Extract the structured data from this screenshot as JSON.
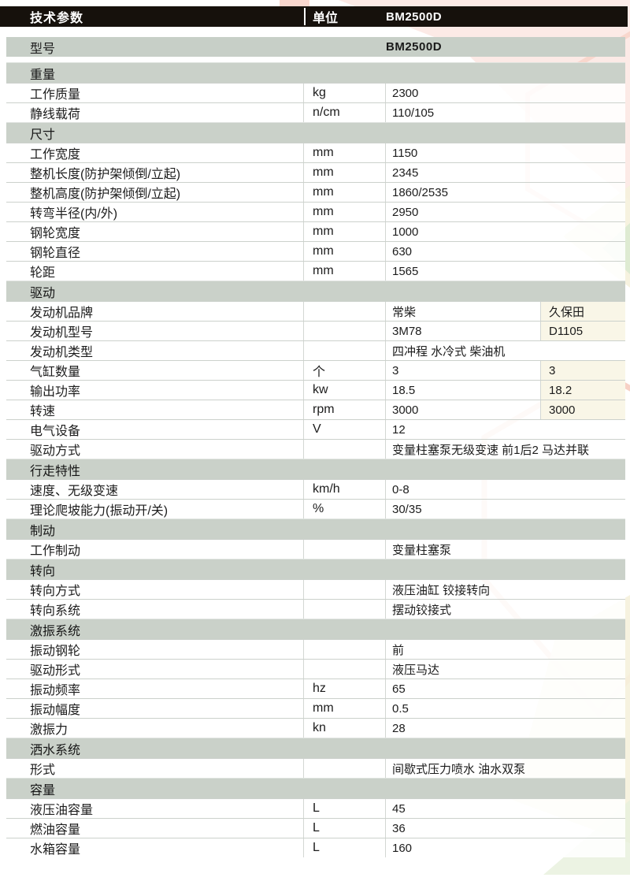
{
  "header": {
    "title": "技术参数",
    "unit_label": "单位",
    "model": "BM2500D"
  },
  "model_row": {
    "label": "型号",
    "value": "BM2500D"
  },
  "sections": [
    {
      "title": "重量",
      "rows": [
        {
          "label": "工作质量",
          "unit": "kg",
          "value": "2300"
        },
        {
          "label": "静线载荷",
          "unit": "n/cm",
          "value": "110/105"
        }
      ]
    },
    {
      "title": "尺寸",
      "rows": [
        {
          "label": "工作宽度",
          "unit": "mm",
          "value": "1150"
        },
        {
          "label": "整机长度(防护架倾倒/立起)",
          "unit": "mm",
          "value": "2345"
        },
        {
          "label": "整机高度(防护架倾倒/立起)",
          "unit": "mm",
          "value": "1860/2535"
        },
        {
          "label": "转弯半径(内/外)",
          "unit": "mm",
          "value": "2950"
        },
        {
          "label": "钢轮宽度",
          "unit": "mm",
          "value": "1000"
        },
        {
          "label": "钢轮直径",
          "unit": "mm",
          "value": "630"
        },
        {
          "label": "轮距",
          "unit": "mm",
          "value": "1565"
        }
      ]
    },
    {
      "title": "驱动",
      "rows": [
        {
          "label": "发动机品牌",
          "unit": "",
          "value": "常柴",
          "value2": "久保田"
        },
        {
          "label": "发动机型号",
          "unit": "",
          "value": "3M78",
          "value2": "D1105"
        },
        {
          "label": "发动机类型",
          "unit": "",
          "value": "四冲程  水冷式  柴油机"
        },
        {
          "label": "气缸数量",
          "unit": "个",
          "value": "3",
          "value2": "3"
        },
        {
          "label": "输出功率",
          "unit": "kw",
          "value": "18.5",
          "value2": "18.2"
        },
        {
          "label": "转速",
          "unit": "rpm",
          "value": "3000",
          "value2": "3000"
        },
        {
          "label": "电气设备",
          "unit": "V",
          "value": "12"
        },
        {
          "label": "驱动方式",
          "unit": "",
          "value": "变量柱塞泵无级变速  前1后2  马达并联"
        }
      ]
    },
    {
      "title": "行走特性",
      "rows": [
        {
          "label": "速度、无级变速",
          "unit": "km/h",
          "value": "0-8"
        },
        {
          "label": "理论爬坡能力(振动开/关)",
          "unit": "%",
          "value": "30/35"
        }
      ]
    },
    {
      "title": "制动",
      "rows": [
        {
          "label": "工作制动",
          "unit": "",
          "value": "变量柱塞泵"
        }
      ]
    },
    {
      "title": "转向",
      "rows": [
        {
          "label": "转向方式",
          "unit": "",
          "value": "液压油缸 铰接转向"
        },
        {
          "label": "转向系统",
          "unit": "",
          "value": "摆动铰接式"
        }
      ]
    },
    {
      "title": "激振系统",
      "rows": [
        {
          "label": "振动钢轮",
          "unit": "",
          "value": "前"
        },
        {
          "label": "驱动形式",
          "unit": "",
          "value": "液压马达"
        },
        {
          "label": "振动频率",
          "unit": "hz",
          "value": "65"
        },
        {
          "label": "振动幅度",
          "unit": "mm",
          "value": "0.5"
        },
        {
          "label": "激振力",
          "unit": "kn",
          "value": "28"
        }
      ]
    },
    {
      "title": "洒水系统",
      "rows": [
        {
          "label": "形式",
          "unit": "",
          "value": "间歇式压力喷水  油水双泵"
        }
      ]
    },
    {
      "title": "容量",
      "rows": [
        {
          "label": "液压油容量",
          "unit": "L",
          "value": "45"
        },
        {
          "label": "燃油容量",
          "unit": "L",
          "value": "36"
        },
        {
          "label": "水箱容量",
          "unit": "L",
          "value": "160"
        }
      ]
    }
  ],
  "colors": {
    "header_bg": "#16110c",
    "header_text": "#ffffff",
    "section_bg": "#cad1c9",
    "row_divider": "#ccd1cc",
    "col4_bg": "#f9f6e7",
    "decor_pink": "#f8d3c9",
    "decor_pink_fill": "#fbe3dd",
    "decor_cream": "#f5f1dc",
    "decor_green": "#dcead0"
  }
}
